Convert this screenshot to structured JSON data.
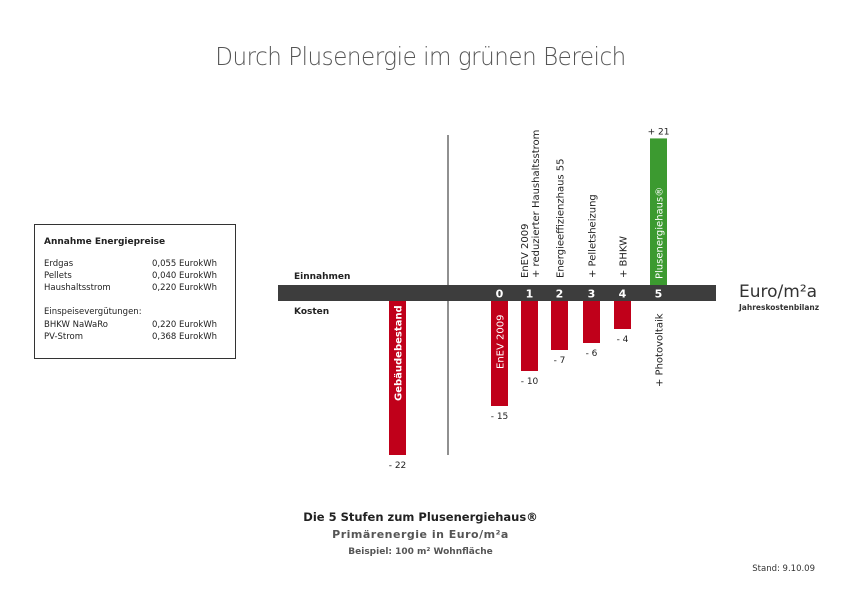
{
  "page": {
    "title": "Durch Plusenergie im grünen Bereich",
    "caption_line1": "Die 5 Stufen zum Plusenergiehaus®",
    "caption_line2": "Primärenergie in Euro/m²a",
    "caption_line3": "Beispiel:  100 m² Wohnfläche",
    "stand": "Stand: 9.10.09"
  },
  "price_box": {
    "title": "Annahme Energiepreise",
    "prices": [
      {
        "label": "Erdgas",
        "value": "0,055 EurokWh"
      },
      {
        "label": "Pellets",
        "value": "0,040 EurokWh"
      },
      {
        "label": "Haushaltsstrom",
        "value": "0,220 EurokWh"
      }
    ],
    "feed_in_title": "Einspeisevergütungen:",
    "feed_in": [
      {
        "label": "BHKW NaWaRo",
        "value": "0,220 EurokWh"
      },
      {
        "label": "PV-Strom",
        "value": "0,368 EurokWh"
      }
    ]
  },
  "colors": {
    "cost_bar": "#c0001a",
    "income_bar": "#3c9a30",
    "axis_band": "#3d3d3d",
    "text": "#222222"
  },
  "chart_data": {
    "type": "bar",
    "unit": "Euro/m²a",
    "unit_subtitle": "Jahreskostenbilanz",
    "label_positive": "Einnahmen",
    "label_negative": "Kosten",
    "ylim": [
      -22,
      21
    ],
    "baseline_bar": {
      "label": "Gebäudebestand",
      "value": -22,
      "value_label": "- 22"
    },
    "stages": [
      {
        "step": "0",
        "value": -15,
        "value_label": "- 15",
        "bar_label": "EnEV 2009",
        "top_labels": []
      },
      {
        "step": "1",
        "value": -10,
        "value_label": "- 10",
        "bar_label": "",
        "top_labels": [
          "EnEV 2009",
          "+ reduzierter Haushaltsstrom"
        ]
      },
      {
        "step": "2",
        "value": -7,
        "value_label": "- 7",
        "bar_label": "",
        "top_labels": [
          "Energieeffizienzhaus 55"
        ]
      },
      {
        "step": "3",
        "value": -6,
        "value_label": "- 6",
        "bar_label": "",
        "top_labels": [
          "+ Pelletsheizung"
        ]
      },
      {
        "step": "4",
        "value": -4,
        "value_label": "- 4",
        "bar_label": "",
        "top_labels": [
          "+ BHKW"
        ]
      },
      {
        "step": "5",
        "value": 21,
        "value_label": "+ 21",
        "bar_label": "Plusenergiehaus®",
        "top_labels": [],
        "below_labels": [
          "+ Photovoltaik"
        ]
      }
    ]
  }
}
